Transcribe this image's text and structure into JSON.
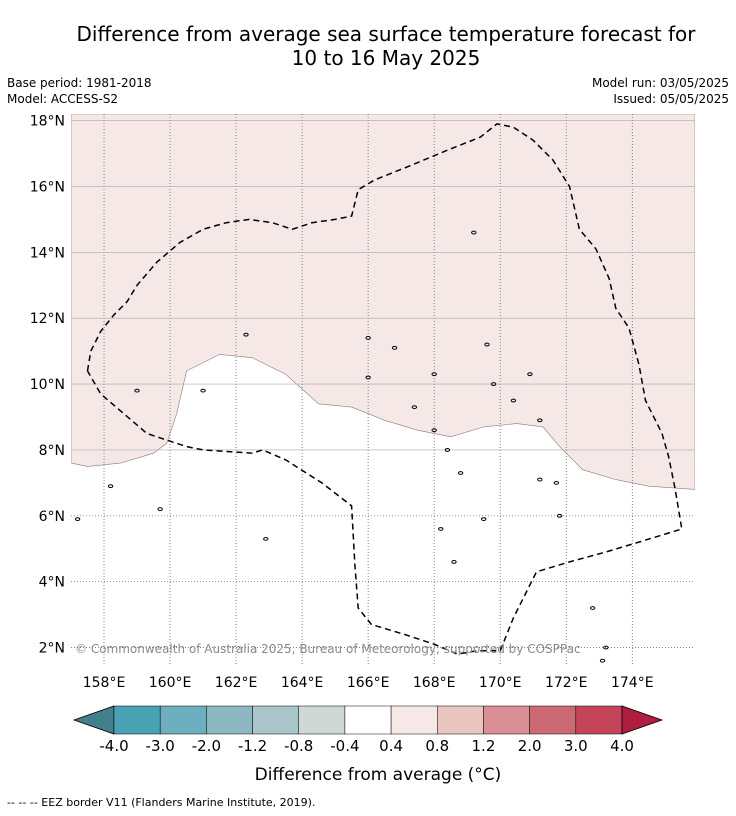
{
  "title_line1": "Difference from average sea surface temperature forecast for",
  "title_line2": "10 to 16 May 2025",
  "base_period": "Base period: 1981-2018",
  "model": "Model: ACCESS-S2",
  "model_run": "Model run: 03/05/2025",
  "issued": "Issued: 05/05/2025",
  "copyright": "© Commonwealth of Australia 2025, Bureau of Meteorology; supported by COSPPac",
  "eez_note": "--  --  -- EEZ border V11 (Flanders Marine Institute, 2019).",
  "colors": {
    "anomaly_0_4_to_0_8": "#f5e8e6",
    "neutral": "#ffffff",
    "eez_line": "#000000",
    "grid_solid": "#aaaaaa",
    "grid_dotted": "#555555"
  },
  "chart_data": {
    "type": "heatmap",
    "title": "Difference from average sea surface temperature forecast for 10 to 16 May 2025",
    "xlabel": "",
    "ylabel": "",
    "x_ticks": [
      "158°E",
      "160°E",
      "162°E",
      "164°E",
      "166°E",
      "168°E",
      "170°E",
      "172°E",
      "174°E"
    ],
    "x_tick_values": [
      158,
      160,
      162,
      164,
      166,
      168,
      170,
      172,
      174
    ],
    "y_ticks": [
      "2°N",
      "4°N",
      "6°N",
      "8°N",
      "10°N",
      "12°N",
      "14°N",
      "16°N",
      "18°N"
    ],
    "y_tick_values": [
      2,
      4,
      6,
      8,
      10,
      12,
      14,
      16,
      18
    ],
    "xlim": [
      157,
      175.9
    ],
    "ylim": [
      1.5,
      18.2
    ],
    "anomaly_boundary": [
      [
        157,
        7.6
      ],
      [
        157.5,
        7.5
      ],
      [
        158.5,
        7.6
      ],
      [
        159.5,
        7.9
      ],
      [
        159.9,
        8.2
      ],
      [
        160.2,
        9.1
      ],
      [
        160.5,
        10.4
      ],
      [
        161.5,
        10.9
      ],
      [
        162.5,
        10.8
      ],
      [
        163.5,
        10.3
      ],
      [
        164.5,
        9.4
      ],
      [
        165.5,
        9.3
      ],
      [
        166.5,
        8.9
      ],
      [
        167.5,
        8.6
      ],
      [
        168.5,
        8.4
      ],
      [
        169.5,
        8.7
      ],
      [
        170.5,
        8.8
      ],
      [
        171.3,
        8.7
      ],
      [
        171.8,
        8.1
      ],
      [
        172.5,
        7.4
      ],
      [
        173.5,
        7.1
      ],
      [
        174.5,
        6.9
      ],
      [
        175.9,
        6.8
      ]
    ],
    "shaded_region_anomaly": "0.4 to 0.8",
    "colorbar": {
      "label": "Difference from average (°C)",
      "ticks": [
        "-4.0",
        "-3.0",
        "-2.0",
        "-1.2",
        "-0.8",
        "-0.4",
        "0.4",
        "0.8",
        "1.2",
        "2.0",
        "3.0",
        "4.0"
      ],
      "colors": [
        "#437f8c",
        "#4aa3b4",
        "#6eafbf",
        "#8db8c2",
        "#a8c6ca",
        "#d0d8d7",
        "#ffffff",
        "#f5e8e6",
        "#e8c5c1",
        "#d98e95",
        "#cd6975",
        "#c4455a",
        "#b01e3f"
      ]
    },
    "eez_border": [
      [
        157.5,
        10.4
      ],
      [
        157.6,
        11.0
      ],
      [
        157.9,
        11.6
      ],
      [
        158.3,
        12.1
      ],
      [
        158.7,
        12.5
      ],
      [
        159.0,
        13.0
      ],
      [
        159.6,
        13.7
      ],
      [
        160.3,
        14.3
      ],
      [
        161.0,
        14.7
      ],
      [
        161.7,
        14.9
      ],
      [
        162.4,
        15.0
      ],
      [
        163.1,
        14.9
      ],
      [
        163.7,
        14.7
      ],
      [
        164.3,
        14.9
      ],
      [
        165.0,
        15.0
      ],
      [
        165.5,
        15.1
      ],
      [
        165.7,
        15.9
      ],
      [
        166.2,
        16.2
      ],
      [
        167.2,
        16.6
      ],
      [
        168.4,
        17.1
      ],
      [
        169.4,
        17.5
      ],
      [
        169.9,
        17.9
      ],
      [
        170.4,
        17.8
      ],
      [
        171.0,
        17.4
      ],
      [
        171.6,
        16.8
      ],
      [
        172.1,
        16.0
      ],
      [
        172.4,
        14.7
      ],
      [
        172.9,
        14.1
      ],
      [
        173.3,
        13.2
      ],
      [
        173.5,
        12.3
      ],
      [
        173.9,
        11.7
      ],
      [
        174.2,
        10.6
      ],
      [
        174.4,
        9.5
      ],
      [
        174.9,
        8.5
      ],
      [
        175.1,
        7.8
      ],
      [
        175.3,
        6.8
      ],
      [
        175.5,
        5.6
      ],
      [
        174.2,
        5.2
      ],
      [
        173.2,
        4.9
      ],
      [
        172.1,
        4.6
      ],
      [
        171.1,
        4.3
      ],
      [
        170.4,
        2.9
      ],
      [
        170.0,
        1.9
      ],
      [
        169.3,
        1.9
      ],
      [
        168.7,
        1.8
      ],
      [
        168.0,
        2.1
      ],
      [
        167.1,
        2.4
      ],
      [
        166.1,
        2.7
      ],
      [
        165.7,
        3.2
      ],
      [
        165.6,
        4.5
      ],
      [
        165.5,
        6.3
      ],
      [
        164.6,
        7.0
      ],
      [
        163.5,
        7.7
      ],
      [
        162.8,
        8.0
      ],
      [
        162.5,
        7.9
      ],
      [
        161.0,
        8.0
      ],
      [
        160.5,
        8.1
      ],
      [
        159.3,
        8.5
      ],
      [
        158.6,
        9.1
      ],
      [
        157.9,
        9.7
      ],
      [
        157.5,
        10.4
      ]
    ],
    "islands": [
      [
        158.2,
        6.9
      ],
      [
        159.0,
        9.8
      ],
      [
        161.0,
        9.8
      ],
      [
        162.3,
        11.5
      ],
      [
        162.9,
        5.3
      ],
      [
        166.0,
        11.4
      ],
      [
        166.8,
        11.1
      ],
      [
        167.4,
        9.3
      ],
      [
        168.0,
        8.6
      ],
      [
        168.4,
        8.0
      ],
      [
        168.8,
        7.3
      ],
      [
        168.2,
        5.6
      ],
      [
        168.6,
        4.6
      ],
      [
        169.2,
        14.6
      ],
      [
        169.6,
        11.2
      ],
      [
        169.8,
        10.0
      ],
      [
        170.4,
        9.5
      ],
      [
        170.9,
        10.3
      ],
      [
        171.2,
        8.9
      ],
      [
        171.2,
        7.1
      ],
      [
        171.7,
        7.0
      ],
      [
        171.8,
        6.0
      ],
      [
        169.5,
        5.9
      ],
      [
        172.8,
        3.2
      ],
      [
        173.2,
        2.0
      ],
      [
        173.1,
        1.6
      ],
      [
        159.7,
        6.2
      ],
      [
        157.2,
        5.9
      ],
      [
        166.0,
        10.2
      ],
      [
        168.0,
        10.3
      ]
    ]
  }
}
